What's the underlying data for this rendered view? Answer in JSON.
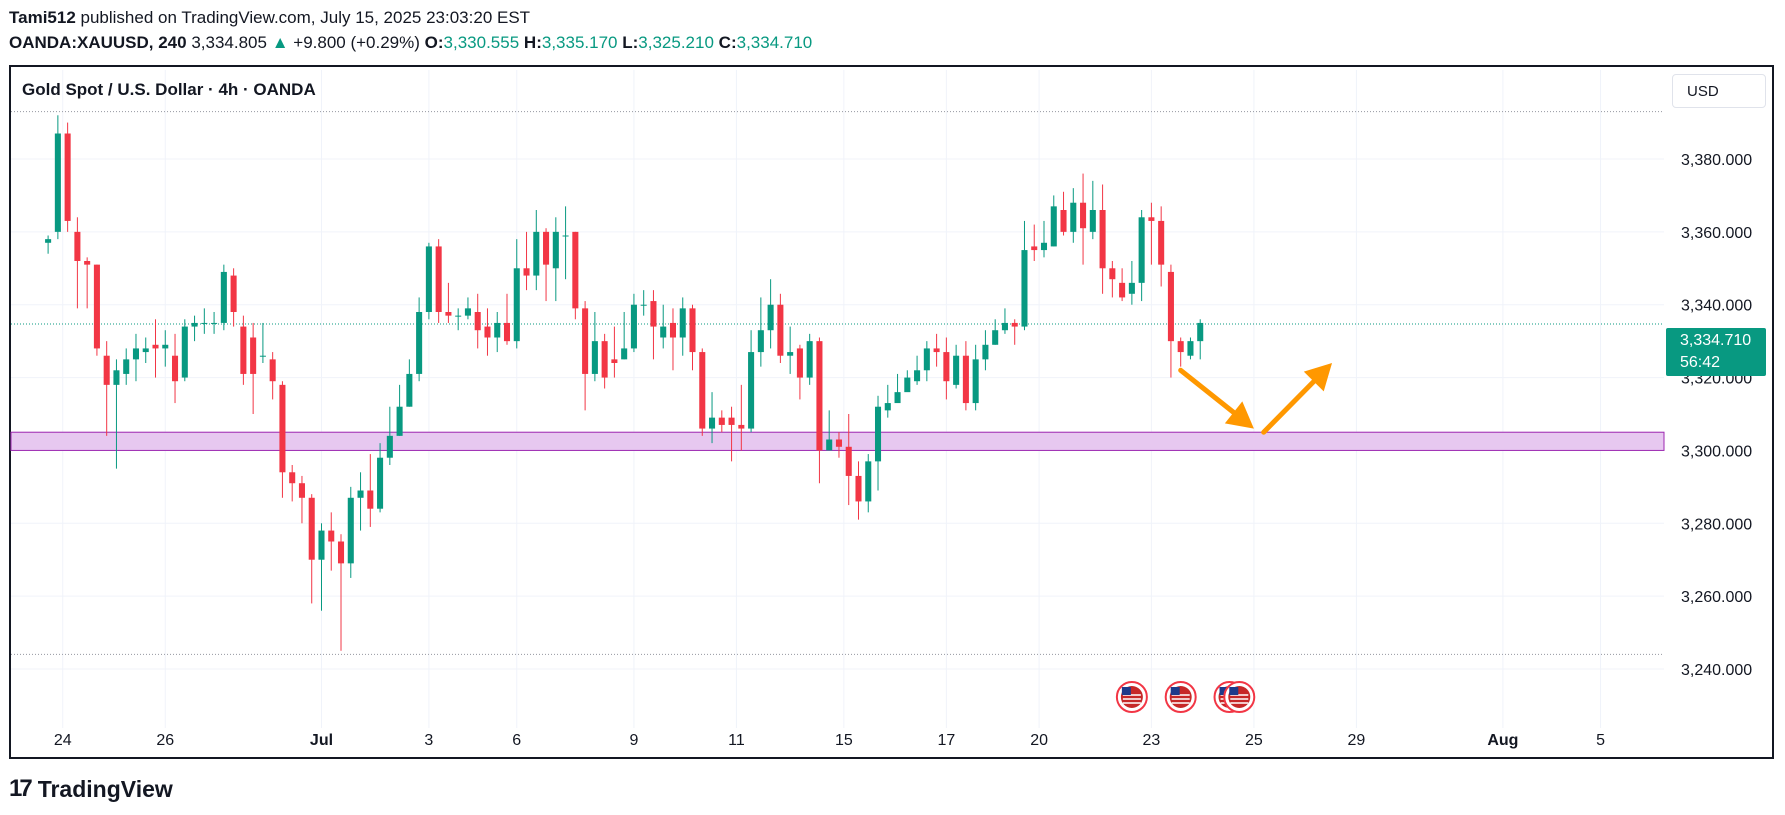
{
  "header": {
    "author": "Tami512",
    "published_text": "published on TradingView.com, July 15, 2025 23:03:20 EST",
    "symbol": "OANDA:XAUUSD, 240",
    "last_price": "3,334.805",
    "change": "+9.800 (+0.29%)",
    "open_label": "O:",
    "open": "3,330.555",
    "high_label": "H:",
    "high": "3,335.170",
    "low_label": "L:",
    "low": "3,325.210",
    "close_label": "C:",
    "close": "3,334.710"
  },
  "chart_title": "Gold Spot / U.S. Dollar · 4h · OANDA",
  "currency_button": "USD",
  "current_price_badge": {
    "price": "3,334.710",
    "countdown": "56:42"
  },
  "brand": "TradingView",
  "colors": {
    "up": "#089981",
    "down": "#f23645",
    "zone_fill": "#e7c8f0",
    "zone_border": "#9c27b0",
    "arrow": "#ff9800"
  },
  "chart_data": {
    "type": "candlestick",
    "y_axis": {
      "ticks": [
        3240,
        3260,
        3280,
        3300,
        3320,
        3340,
        3360,
        3380
      ],
      "tick_labels": [
        "3,240.000",
        "3,260.000",
        "3,280.000",
        "3,300.000",
        "3,320.000",
        "3,340.000",
        "3,360.000",
        "3,380.000"
      ],
      "ylim": [
        3226,
        3394
      ]
    },
    "x_axis": {
      "ticks": [
        {
          "label": "24",
          "t": 1.5
        },
        {
          "label": "26",
          "t": 12
        },
        {
          "label": "Jul",
          "t": 28
        },
        {
          "label": "3",
          "t": 39
        },
        {
          "label": "6",
          "t": 48
        },
        {
          "label": "9",
          "t": 60
        },
        {
          "label": "11",
          "t": 70.5
        },
        {
          "label": "15",
          "t": 81.5
        },
        {
          "label": "17",
          "t": 92
        },
        {
          "label": "20",
          "t": 101.5
        },
        {
          "label": "23",
          "t": 113
        },
        {
          "label": "25",
          "t": 123.5
        },
        {
          "label": "29",
          "t": 134
        },
        {
          "label": "Aug",
          "t": 149
        },
        {
          "label": "5",
          "t": 159
        }
      ],
      "xlim": [
        -3.8,
        165.5
      ]
    },
    "candles": [
      [
        3357,
        3358,
        3354,
        3359
      ],
      [
        3360,
        3387,
        3358,
        3392
      ],
      [
        3387,
        3363,
        3360,
        3390
      ],
      [
        3360,
        3352,
        3339,
        3364
      ],
      [
        3352,
        3351,
        3339,
        3353
      ],
      [
        3351,
        3328,
        3326,
        3351
      ],
      [
        3326,
        3318,
        3304,
        3330
      ],
      [
        3318,
        3322,
        3295,
        3325
      ],
      [
        3321,
        3325,
        3318,
        3328
      ],
      [
        3325,
        3328,
        3319,
        3332
      ],
      [
        3327,
        3328,
        3324,
        3331
      ],
      [
        3329,
        3328,
        3320,
        3336
      ],
      [
        3328,
        3329,
        3323,
        3333
      ],
      [
        3326,
        3319,
        3313,
        3332
      ],
      [
        3320,
        3334,
        3319,
        3336
      ],
      [
        3334,
        3335,
        3330,
        3337
      ],
      [
        3335,
        3335,
        3332,
        3339
      ],
      [
        3335,
        3335,
        3332,
        3338
      ],
      [
        3335,
        3349,
        3333,
        3351
      ],
      [
        3348,
        3338,
        3334,
        3350
      ],
      [
        3334,
        3321,
        3318,
        3337
      ],
      [
        3331,
        3321,
        3310,
        3335
      ],
      [
        3326,
        3326,
        3324,
        3335
      ],
      [
        3325,
        3319,
        3314,
        3327
      ],
      [
        3318,
        3294,
        3287,
        3319
      ],
      [
        3294,
        3291,
        3286,
        3296
      ],
      [
        3291,
        3287,
        3280,
        3293
      ],
      [
        3287,
        3270,
        3258,
        3288
      ],
      [
        3270,
        3278,
        3256,
        3280
      ],
      [
        3278,
        3275,
        3267,
        3283
      ],
      [
        3275,
        3269,
        3245,
        3277
      ],
      [
        3269,
        3287,
        3265,
        3290
      ],
      [
        3287,
        3289,
        3278,
        3294
      ],
      [
        3289,
        3284,
        3279,
        3299
      ],
      [
        3284,
        3298,
        3283,
        3302
      ],
      [
        3298,
        3304,
        3296,
        3312
      ],
      [
        3304,
        3312,
        3304,
        3318
      ],
      [
        3312,
        3321,
        3312,
        3325
      ],
      [
        3321,
        3338,
        3319,
        3342
      ],
      [
        3338,
        3356,
        3336,
        3357
      ],
      [
        3356,
        3338,
        3335,
        3358
      ],
      [
        3338,
        3337,
        3335,
        3346
      ],
      [
        3337,
        3337,
        3333,
        3339
      ],
      [
        3337,
        3339,
        3336,
        3342
      ],
      [
        3338,
        3333,
        3328,
        3343
      ],
      [
        3334,
        3331,
        3326,
        3339
      ],
      [
        3331,
        3335,
        3327,
        3338
      ],
      [
        3335,
        3330,
        3329,
        3343
      ],
      [
        3330,
        3350,
        3328,
        3358
      ],
      [
        3350,
        3348,
        3344,
        3360
      ],
      [
        3348,
        3360,
        3344,
        3366
      ],
      [
        3360,
        3351,
        3341,
        3361
      ],
      [
        3350,
        3360,
        3341,
        3364
      ],
      [
        3359,
        3359,
        3347,
        3367
      ],
      [
        3360,
        3339,
        3336,
        3360
      ],
      [
        3339,
        3321,
        3311,
        3341
      ],
      [
        3321,
        3330,
        3319,
        3338
      ],
      [
        3330,
        3320,
        3317,
        3332
      ],
      [
        3325,
        3324,
        3320,
        3334
      ],
      [
        3325,
        3328,
        3325,
        3338
      ],
      [
        3328,
        3340,
        3327,
        3343
      ],
      [
        3340,
        3340,
        3337,
        3344
      ],
      [
        3341,
        3334,
        3325,
        3344
      ],
      [
        3331,
        3334,
        3328,
        3340
      ],
      [
        3335,
        3331,
        3322,
        3339
      ],
      [
        3331,
        3339,
        3326,
        3342
      ],
      [
        3339,
        3327,
        3322,
        3340
      ],
      [
        3327,
        3306,
        3304,
        3328
      ],
      [
        3306,
        3309,
        3302,
        3316
      ],
      [
        3309,
        3307,
        3305,
        3311
      ],
      [
        3309,
        3307,
        3297,
        3312
      ],
      [
        3307,
        3306,
        3300,
        3318
      ],
      [
        3306,
        3327,
        3305,
        3333
      ],
      [
        3327,
        3333,
        3323,
        3342
      ],
      [
        3333,
        3340,
        3328,
        3347
      ],
      [
        3340,
        3326,
        3324,
        3343
      ],
      [
        3326,
        3327,
        3321,
        3334
      ],
      [
        3328,
        3320,
        3314,
        3329
      ],
      [
        3320,
        3330,
        3318,
        3332
      ],
      [
        3330,
        3300,
        3291,
        3331
      ],
      [
        3300,
        3303,
        3300,
        3311
      ],
      [
        3303,
        3301,
        3298,
        3305
      ],
      [
        3301,
        3293,
        3285,
        3310
      ],
      [
        3293,
        3286,
        3281,
        3297
      ],
      [
        3286,
        3297,
        3283,
        3299
      ],
      [
        3297,
        3312,
        3289,
        3315
      ],
      [
        3311,
        3313,
        3309,
        3318
      ],
      [
        3313,
        3316,
        3314,
        3321
      ],
      [
        3316,
        3320,
        3317,
        3322
      ],
      [
        3319,
        3322,
        3318,
        3326
      ],
      [
        3322,
        3328,
        3319,
        3330
      ],
      [
        3328,
        3327,
        3323,
        3332
      ],
      [
        3327,
        3319,
        3314,
        3331
      ],
      [
        3318,
        3326,
        3317,
        3329
      ],
      [
        3326,
        3313,
        3311,
        3330
      ],
      [
        3313,
        3325,
        3311,
        3329
      ],
      [
        3325,
        3329,
        3322,
        3333
      ],
      [
        3329,
        3333,
        3329,
        3336
      ],
      [
        3333,
        3335,
        3332,
        3339
      ],
      [
        3335,
        3334,
        3329,
        3336
      ],
      [
        3334,
        3355,
        3333,
        3363
      ],
      [
        3356,
        3355,
        3352,
        3362
      ],
      [
        3355,
        3357,
        3353,
        3363
      ],
      [
        3356,
        3367,
        3356,
        3370
      ],
      [
        3366,
        3360,
        3359,
        3371
      ],
      [
        3360,
        3368,
        3357,
        3372
      ],
      [
        3368,
        3361,
        3351,
        3376
      ],
      [
        3360,
        3366,
        3358,
        3374
      ],
      [
        3366,
        3350,
        3343,
        3373
      ],
      [
        3350,
        3347,
        3342,
        3352
      ],
      [
        3346,
        3342,
        3341,
        3350
      ],
      [
        3343,
        3346,
        3340,
        3352
      ],
      [
        3346,
        3364,
        3341,
        3366
      ],
      [
        3364,
        3363,
        3351,
        3368
      ],
      [
        3363,
        3351,
        3345,
        3367
      ],
      [
        3349,
        3330,
        3320,
        3351
      ],
      [
        3330,
        3327,
        3323,
        3331
      ],
      [
        3326,
        3330,
        3325,
        3331
      ],
      [
        3330,
        3335,
        3325,
        3336
      ]
    ],
    "current_price": 3334.71,
    "high_line": 3393,
    "low_line": 3244,
    "support_zone": [
      3300,
      3305
    ],
    "projection_arrows": [
      [
        [
          116,
          3322
        ],
        [
          123.5,
          3306
        ]
      ],
      [
        [
          124.5,
          3305
        ],
        [
          131.5,
          3324
        ]
      ]
    ],
    "event_markers": [
      {
        "t": 111
      },
      {
        "t": 116
      },
      {
        "t": 121
      },
      {
        "t": 122
      }
    ]
  }
}
